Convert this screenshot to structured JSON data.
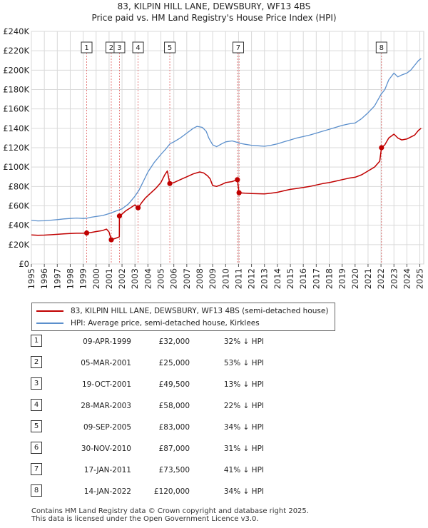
{
  "title": {
    "line1": "83, KILPIN HILL LANE, DEWSBURY, WF13 4BS",
    "line2": "Price paid vs. HM Land Registry's House Price Index (HPI)"
  },
  "chart_data": {
    "type": "line",
    "title": "83, KILPIN HILL LANE, DEWSBURY, WF13 4BS — Price paid vs. HM Land Registry's House Price Index (HPI)",
    "xlim": [
      1995,
      2025.3
    ],
    "ylim": [
      0,
      240000
    ],
    "x_ticks": [
      "1995",
      "1996",
      "1997",
      "1998",
      "1999",
      "2000",
      "2001",
      "2002",
      "2003",
      "2004",
      "2005",
      "2006",
      "2007",
      "2008",
      "2009",
      "2010",
      "2011",
      "2012",
      "2013",
      "2014",
      "2015",
      "2016",
      "2017",
      "2018",
      "2019",
      "2020",
      "2021",
      "2022",
      "2023",
      "2024",
      "2025"
    ],
    "y_ticks": [
      {
        "value": 0,
        "label": "£0"
      },
      {
        "value": 20000,
        "label": "£20K"
      },
      {
        "value": 40000,
        "label": "£40K"
      },
      {
        "value": 60000,
        "label": "£60K"
      },
      {
        "value": 80000,
        "label": "£80K"
      },
      {
        "value": 100000,
        "label": "£100K"
      },
      {
        "value": 120000,
        "label": "£120K"
      },
      {
        "value": 140000,
        "label": "£140K"
      },
      {
        "value": 160000,
        "label": "£160K"
      },
      {
        "value": 180000,
        "label": "£180K"
      },
      {
        "value": 200000,
        "label": "£200K"
      },
      {
        "value": 220000,
        "label": "£220K"
      },
      {
        "value": 240000,
        "label": "£240K"
      }
    ],
    "grid": true,
    "series": [
      {
        "name": "hpi",
        "color": "#5b8fcc",
        "points": [
          [
            1995.0,
            45000
          ],
          [
            1995.5,
            44500
          ],
          [
            1996.0,
            44600
          ],
          [
            1996.5,
            45200
          ],
          [
            1997.0,
            45800
          ],
          [
            1997.5,
            46500
          ],
          [
            1998.0,
            47000
          ],
          [
            1998.5,
            47400
          ],
          [
            1999.0,
            47000
          ],
          [
            1999.3,
            47300
          ],
          [
            1999.6,
            48200
          ],
          [
            2000.0,
            49000
          ],
          [
            2000.5,
            50000
          ],
          [
            2001.0,
            52000
          ],
          [
            2001.5,
            54500
          ],
          [
            2002.0,
            57000
          ],
          [
            2002.5,
            62000
          ],
          [
            2003.0,
            70000
          ],
          [
            2003.3,
            76000
          ],
          [
            2003.6,
            84000
          ],
          [
            2004.0,
            95000
          ],
          [
            2004.5,
            105000
          ],
          [
            2005.0,
            113000
          ],
          [
            2005.4,
            119000
          ],
          [
            2005.7,
            124000
          ],
          [
            2006.0,
            126000
          ],
          [
            2006.5,
            130000
          ],
          [
            2007.0,
            135000
          ],
          [
            2007.5,
            140000
          ],
          [
            2007.8,
            142000
          ],
          [
            2008.2,
            141000
          ],
          [
            2008.5,
            137000
          ],
          [
            2008.7,
            130000
          ],
          [
            2009.0,
            123000
          ],
          [
            2009.3,
            121000
          ],
          [
            2009.7,
            124000
          ],
          [
            2010.0,
            126000
          ],
          [
            2010.5,
            127000
          ],
          [
            2010.9,
            125500
          ],
          [
            2011.1,
            124500
          ],
          [
            2011.5,
            123500
          ],
          [
            2012.0,
            122500
          ],
          [
            2012.5,
            122000
          ],
          [
            2013.0,
            121500
          ],
          [
            2013.5,
            122500
          ],
          [
            2014.0,
            124000
          ],
          [
            2014.5,
            126000
          ],
          [
            2015.0,
            128000
          ],
          [
            2015.5,
            130000
          ],
          [
            2016.0,
            131500
          ],
          [
            2016.5,
            133000
          ],
          [
            2017.0,
            135000
          ],
          [
            2017.5,
            137000
          ],
          [
            2018.0,
            139000
          ],
          [
            2018.5,
            141000
          ],
          [
            2019.0,
            143000
          ],
          [
            2019.5,
            144500
          ],
          [
            2020.0,
            145500
          ],
          [
            2020.5,
            150000
          ],
          [
            2021.0,
            156000
          ],
          [
            2021.5,
            163000
          ],
          [
            2022.0,
            175000
          ],
          [
            2022.3,
            180000
          ],
          [
            2022.6,
            190000
          ],
          [
            2023.0,
            197000
          ],
          [
            2023.3,
            193000
          ],
          [
            2023.6,
            195000
          ],
          [
            2024.0,
            197000
          ],
          [
            2024.3,
            200000
          ],
          [
            2024.6,
            205000
          ],
          [
            2024.9,
            210000
          ],
          [
            2025.1,
            212000
          ]
        ]
      },
      {
        "name": "price_paid",
        "color": "#c00000",
        "points": [
          [
            1995.0,
            30000
          ],
          [
            1995.5,
            29700
          ],
          [
            1996.0,
            29800
          ],
          [
            1996.5,
            30200
          ],
          [
            1997.0,
            30600
          ],
          [
            1997.5,
            31100
          ],
          [
            1998.0,
            31400
          ],
          [
            1998.5,
            31700
          ],
          [
            1999.0,
            31700
          ],
          [
            1999.27,
            32000
          ],
          [
            1999.6,
            32500
          ],
          [
            2000.0,
            33500
          ],
          [
            2000.5,
            34500
          ],
          [
            2000.8,
            36000
          ],
          [
            2001.0,
            33000
          ],
          [
            2001.17,
            25000
          ],
          [
            2001.5,
            26500
          ],
          [
            2001.79,
            28000
          ],
          [
            2001.8,
            49500
          ],
          [
            2002.0,
            51500
          ],
          [
            2002.3,
            55000
          ],
          [
            2002.6,
            57500
          ],
          [
            2003.0,
            61000
          ],
          [
            2003.24,
            58000
          ],
          [
            2003.5,
            63000
          ],
          [
            2003.8,
            68000
          ],
          [
            2004.2,
            73000
          ],
          [
            2004.6,
            78000
          ],
          [
            2005.0,
            84000
          ],
          [
            2005.3,
            92000
          ],
          [
            2005.5,
            96000
          ],
          [
            2005.69,
            83000
          ],
          [
            2006.0,
            84000
          ],
          [
            2006.5,
            87000
          ],
          [
            2007.0,
            90000
          ],
          [
            2007.5,
            93000
          ],
          [
            2008.0,
            95000
          ],
          [
            2008.3,
            94000
          ],
          [
            2008.6,
            91000
          ],
          [
            2008.8,
            88000
          ],
          [
            2009.0,
            81000
          ],
          [
            2009.3,
            80000
          ],
          [
            2009.7,
            82000
          ],
          [
            2010.0,
            84000
          ],
          [
            2010.5,
            85000
          ],
          [
            2010.91,
            87000
          ],
          [
            2011.04,
            73500
          ],
          [
            2011.5,
            73000
          ],
          [
            2012.0,
            72700
          ],
          [
            2012.5,
            72500
          ],
          [
            2013.0,
            72400
          ],
          [
            2013.5,
            73000
          ],
          [
            2014.0,
            74000
          ],
          [
            2014.5,
            75500
          ],
          [
            2015.0,
            77000
          ],
          [
            2015.5,
            78000
          ],
          [
            2016.0,
            79000
          ],
          [
            2016.5,
            80000
          ],
          [
            2017.0,
            81500
          ],
          [
            2017.5,
            83000
          ],
          [
            2018.0,
            84000
          ],
          [
            2018.5,
            85500
          ],
          [
            2019.0,
            87000
          ],
          [
            2019.5,
            88500
          ],
          [
            2020.0,
            89500
          ],
          [
            2020.5,
            92000
          ],
          [
            2021.0,
            96000
          ],
          [
            2021.5,
            100000
          ],
          [
            2021.9,
            106000
          ],
          [
            2022.04,
            120000
          ],
          [
            2022.3,
            123000
          ],
          [
            2022.6,
            130000
          ],
          [
            2023.0,
            134000
          ],
          [
            2023.3,
            130000
          ],
          [
            2023.6,
            128000
          ],
          [
            2024.0,
            129000
          ],
          [
            2024.3,
            131000
          ],
          [
            2024.6,
            133000
          ],
          [
            2024.9,
            138000
          ],
          [
            2025.1,
            140000
          ]
        ]
      }
    ],
    "sales": [
      {
        "n": "1",
        "x": 1999.27,
        "price": 32000
      },
      {
        "n": "2",
        "x": 2001.17,
        "price": 25000
      },
      {
        "n": "3",
        "x": 2001.8,
        "price": 49500
      },
      {
        "n": "4",
        "x": 2003.24,
        "price": 58000
      },
      {
        "n": "5",
        "x": 2005.69,
        "price": 83000
      },
      {
        "n": "6",
        "x": 2010.91,
        "price": 87000
      },
      {
        "n": "7",
        "x": 2011.04,
        "price": 73500
      },
      {
        "n": "8",
        "x": 2022.04,
        "price": 120000
      }
    ],
    "marker_groups": [
      {
        "label": "1",
        "sales": [
          "1"
        ]
      },
      {
        "label": "2",
        "sales": [
          "2"
        ]
      },
      {
        "label": "3",
        "sales": [
          "3"
        ]
      },
      {
        "label": "4",
        "sales": [
          "4"
        ]
      },
      {
        "label": "5",
        "sales": [
          "5"
        ]
      },
      {
        "label": "7",
        "sales": [
          "6",
          "7"
        ]
      },
      {
        "label": "8",
        "sales": [
          "8"
        ]
      }
    ]
  },
  "legend": {
    "red_label": "83, KILPIN HILL LANE, DEWSBURY, WF13 4BS (semi-detached house)",
    "blue_label": "HPI: Average price, semi-detached house, Kirklees"
  },
  "transactions": [
    {
      "n": "1",
      "date": "09-APR-1999",
      "price": "£32,000",
      "hpi": "32% ↓ HPI"
    },
    {
      "n": "2",
      "date": "05-MAR-2001",
      "price": "£25,000",
      "hpi": "53% ↓ HPI"
    },
    {
      "n": "3",
      "date": "19-OCT-2001",
      "price": "£49,500",
      "hpi": "13% ↓ HPI"
    },
    {
      "n": "4",
      "date": "28-MAR-2003",
      "price": "£58,000",
      "hpi": "22% ↓ HPI"
    },
    {
      "n": "5",
      "date": "09-SEP-2005",
      "price": "£83,000",
      "hpi": "34% ↓ HPI"
    },
    {
      "n": "6",
      "date": "30-NOV-2010",
      "price": "£87,000",
      "hpi": "31% ↓ HPI"
    },
    {
      "n": "7",
      "date": "17-JAN-2011",
      "price": "£73,500",
      "hpi": "41% ↓ HPI"
    },
    {
      "n": "8",
      "date": "14-JAN-2022",
      "price": "£120,000",
      "hpi": "34% ↓ HPI"
    }
  ],
  "footer": {
    "line1": "Contains HM Land Registry data © Crown copyright and database right 2025.",
    "line2": "This data is licensed under the Open Government Licence v3.0."
  }
}
